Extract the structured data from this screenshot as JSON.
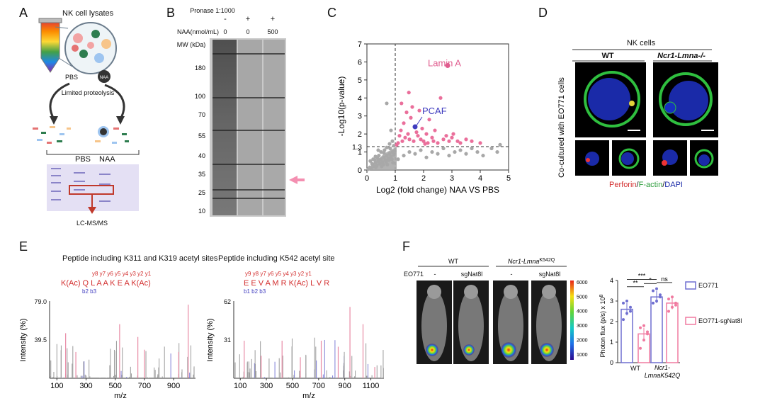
{
  "panels": {
    "A": "A",
    "B": "B",
    "C": "C",
    "D": "D",
    "E": "E",
    "F": "F"
  },
  "panel_a": {
    "title": "NK cell lysates",
    "pbs": "PBS",
    "naa": "NAA",
    "naa_bead": "NAA",
    "step": "Limited proteolysis",
    "gel_pbs": "PBS",
    "gel_naa": "NAA",
    "output": "LC-MS/MS"
  },
  "panel_b": {
    "pronase_label": "Pronase 1:1000",
    "pronase_values": [
      "-",
      "+",
      "+"
    ],
    "naa_label": "NAA(nmol/mL)",
    "naa_values": [
      "0",
      "0",
      "500"
    ],
    "mw_label": "MW (kDa)",
    "markers": [
      180,
      100,
      70,
      55,
      40,
      35,
      25,
      10
    ]
  },
  "chart_data": [
    {
      "type": "scatter",
      "panel": "C",
      "xlabel": "Log2 (fold change) NAA VS PBS",
      "ylabel": "-Log10(p-value)",
      "xlim": [
        0,
        5
      ],
      "ylim": [
        0,
        7
      ],
      "xticks": [
        0,
        1,
        2,
        3,
        4,
        5
      ],
      "yticks": [
        0,
        1,
        2,
        3,
        4,
        5,
        6,
        7
      ],
      "y_threshold": 1.3,
      "x_threshold": 1,
      "threshold_label": "1.3",
      "highlights": [
        {
          "name": "Lamin A",
          "x": 2.85,
          "y": 5.8,
          "color": "#e05c8e"
        },
        {
          "name": "PCAF",
          "x": 1.7,
          "y": 2.4,
          "color": "#3f3cbf"
        }
      ],
      "significant_points": [
        [
          1.1,
          1.5
        ],
        [
          1.15,
          1.9
        ],
        [
          1.2,
          2.2
        ],
        [
          1.25,
          1.6
        ],
        [
          1.3,
          2.6
        ],
        [
          1.35,
          1.8
        ],
        [
          1.4,
          3.2
        ],
        [
          1.45,
          2.0
        ],
        [
          1.5,
          1.7
        ],
        [
          1.55,
          2.9
        ],
        [
          1.6,
          3.5
        ],
        [
          1.65,
          1.6
        ],
        [
          1.75,
          2.1
        ],
        [
          1.8,
          1.9
        ],
        [
          1.85,
          3.3
        ],
        [
          1.9,
          1.7
        ],
        [
          1.95,
          2.3
        ],
        [
          2.0,
          1.6
        ],
        [
          2.1,
          2.0
        ],
        [
          2.15,
          1.5
        ],
        [
          2.2,
          2.8
        ],
        [
          2.3,
          1.8
        ],
        [
          2.35,
          1.6
        ],
        [
          2.4,
          2.2
        ],
        [
          2.5,
          1.5
        ],
        [
          2.6,
          4.0
        ],
        [
          2.7,
          1.7
        ],
        [
          2.8,
          1.9
        ],
        [
          2.9,
          1.6
        ],
        [
          3.0,
          1.8
        ],
        [
          3.05,
          2.0
        ],
        [
          3.2,
          1.6
        ],
        [
          3.3,
          1.5
        ],
        [
          3.5,
          1.7
        ],
        [
          3.7,
          1.6
        ],
        [
          4.0,
          1.5
        ],
        [
          1.05,
          1.4
        ],
        [
          1.22,
          3.7
        ],
        [
          1.48,
          4.3
        ],
        [
          2.05,
          1.45
        ]
      ],
      "nonsignificant_points": [
        [
          0.05,
          0.05
        ],
        [
          0.1,
          0.15
        ],
        [
          0.15,
          0.1
        ],
        [
          0.2,
          0.3
        ],
        [
          0.25,
          0.2
        ],
        [
          0.3,
          0.4
        ],
        [
          0.35,
          0.25
        ],
        [
          0.4,
          0.5
        ],
        [
          0.45,
          0.35
        ],
        [
          0.5,
          0.6
        ],
        [
          0.55,
          0.45
        ],
        [
          0.6,
          0.7
        ],
        [
          0.65,
          0.55
        ],
        [
          0.7,
          0.8
        ],
        [
          0.75,
          0.65
        ],
        [
          0.8,
          0.9
        ],
        [
          0.85,
          0.75
        ],
        [
          0.9,
          1.0
        ],
        [
          0.95,
          0.85
        ],
        [
          0.12,
          0.5
        ],
        [
          0.22,
          0.6
        ],
        [
          0.32,
          0.15
        ],
        [
          0.42,
          0.8
        ],
        [
          0.52,
          0.2
        ],
        [
          0.62,
          1.1
        ],
        [
          0.72,
          0.3
        ],
        [
          0.82,
          1.2
        ],
        [
          0.92,
          0.4
        ],
        [
          0.4,
          1.1
        ],
        [
          0.6,
          0.95
        ],
        [
          0.7,
          1.25
        ],
        [
          0.5,
          1.0
        ],
        [
          0.3,
          0.75
        ],
        [
          0.18,
          0.35
        ],
        [
          0.28,
          0.55
        ],
        [
          0.38,
          0.65
        ],
        [
          0.48,
          0.4
        ],
        [
          0.58,
          0.3
        ],
        [
          0.68,
          0.45
        ],
        [
          0.78,
          0.55
        ],
        [
          0.88,
          0.6
        ],
        [
          0.98,
          1.05
        ],
        [
          1.1,
          0.6
        ],
        [
          1.3,
          0.8
        ],
        [
          1.5,
          1.0
        ],
        [
          1.7,
          0.9
        ],
        [
          1.9,
          1.1
        ],
        [
          2.1,
          0.7
        ],
        [
          2.3,
          1.0
        ],
        [
          2.5,
          0.9
        ],
        [
          2.7,
          1.2
        ],
        [
          2.9,
          0.8
        ],
        [
          3.1,
          1.0
        ],
        [
          3.3,
          1.1
        ],
        [
          3.5,
          0.9
        ],
        [
          3.7,
          1.2
        ],
        [
          3.9,
          1.0
        ],
        [
          4.1,
          0.8
        ],
        [
          4.4,
          1.2
        ],
        [
          4.6,
          1.0
        ],
        [
          4.7,
          1.4
        ],
        [
          0.7,
          3.7
        ],
        [
          0.85,
          2.2
        ],
        [
          0.9,
          1.6
        ],
        [
          0.8,
          1.45
        ],
        [
          0.95,
          1.35
        ]
      ]
    },
    {
      "type": "bar",
      "panel": "F",
      "ylabel": "Photon flux (p/s) x 10^8",
      "yticks": [
        0,
        1,
        2,
        3,
        4
      ],
      "ylim": [
        0,
        4
      ],
      "categories": [
        "WT",
        "Ncr1-Lmna K542Q"
      ],
      "series": [
        {
          "name": "EO771",
          "values": [
            2.6,
            3.2
          ],
          "color": "#6f6fd0"
        },
        {
          "name": "EO771-sgNat8l",
          "values": [
            1.4,
            2.9
          ],
          "color": "#f07aa0"
        }
      ],
      "points": [
        [
          2.1,
          2.4,
          2.7,
          2.9,
          3.0,
          2.5
        ],
        [
          0.7,
          1.1,
          1.4,
          1.7,
          1.8,
          1.5
        ],
        [
          2.9,
          3.0,
          3.3,
          3.5,
          3.6,
          3.2
        ],
        [
          2.5,
          2.7,
          2.9,
          3.1,
          3.2,
          2.8
        ]
      ],
      "significance": [
        "**",
        "*",
        "***",
        "ns"
      ],
      "cat_wt": "WT",
      "cat_mut": "Ncr1-",
      "cat_mut2": "LmnaK542Q"
    }
  ],
  "panel_d": {
    "header": "NK cells",
    "wt": "WT",
    "ko": "Ncr1-Lmna-/-",
    "side": "Co-cultured with EO771 cells",
    "perforin": "Perforin",
    "factin": "F-actin",
    "dapi": "DAPI"
  },
  "panel_e": {
    "title1": "Peptide including K311 and K319 acetyl sites",
    "title2": "Peptide including K542 acetyl site",
    "seq1_y": "y8 y7 y6 y5 y4 y3 y2 y1",
    "seq1": "K(Ac) Q L A A K E A K(Ac)",
    "seq1_b": "b2 b3",
    "seq2_y": "y9 y8 y7 y6 y5 y4 y3 y2 y1",
    "seq2": "E E V A M R K(Ac) L V R",
    "seq2_b": "b1 b2 b3",
    "ylabel": "Intensity (%)",
    "xlabel": "m/z",
    "s1_ymax": "79.0",
    "s1_ymid": "39.5",
    "s2_ymax": "62",
    "s2_ymid": "31",
    "s1_xticks": [
      100,
      300,
      500,
      700,
      900
    ],
    "s2_xticks": [
      100,
      300,
      500,
      700,
      900,
      1100
    ]
  },
  "panel_f": {
    "wt": "WT",
    "mut": "Ncr1-Lmna",
    "mut_sup": "K542Q",
    "eo771": "EO771",
    "neg": "-",
    "sg": "sgNat8l",
    "scale": [
      6000,
      5000,
      4000,
      3000,
      2000,
      1000
    ]
  }
}
